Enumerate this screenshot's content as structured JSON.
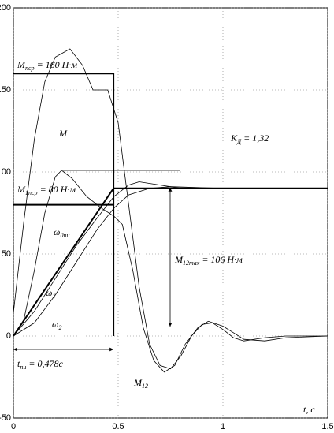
{
  "chart_data": {
    "type": "line",
    "xlim": [
      0,
      1.5
    ],
    "ylim": [
      -50,
      200
    ],
    "xticks": [
      0,
      0.5,
      1,
      1.5
    ],
    "yticks": [
      -50,
      0,
      50,
      100,
      150,
      200
    ],
    "grid": true,
    "series": [
      {
        "color": "#000",
        "line_width": 2,
        "x": [
          0,
          0.478,
          0.478
        ],
        "values": [
          160,
          160,
          0
        ]
      },
      {
        "color": "#000",
        "line_width": 2,
        "x": [
          0,
          0.478
        ],
        "values": [
          80,
          80
        ]
      },
      {
        "color": "#000",
        "line_width": 2,
        "x": [
          0,
          0.478,
          1.5
        ],
        "values": [
          0,
          90,
          90
        ]
      },
      {
        "color": "#000",
        "line_width": 0.8,
        "x": [
          0,
          0.05,
          0.1,
          0.15,
          0.2,
          0.27,
          0.33,
          0.38,
          0.45,
          0.5,
          0.55,
          0.6,
          0.65,
          0.7,
          0.75,
          0.8,
          0.85,
          0.9,
          0.95,
          1.0,
          1.05,
          1.1,
          1.2,
          1.3,
          1.5
        ],
        "values": [
          14,
          70,
          120,
          155,
          170,
          175,
          165,
          150,
          150,
          130,
          80,
          30,
          -5,
          -18,
          -20,
          -12,
          0,
          7,
          8,
          4,
          -1,
          -3,
          -1,
          0,
          0
        ]
      },
      {
        "color": "#000",
        "line_width": 0.8,
        "x": [
          0,
          0.05,
          0.1,
          0.15,
          0.2,
          0.23,
          0.28,
          0.35,
          0.42,
          0.48,
          0.52,
          0.57,
          0.62,
          0.67,
          0.72,
          0.77,
          0.82,
          0.88,
          0.93,
          1.0,
          1.05,
          1.1,
          1.2,
          1.3,
          1.5
        ],
        "values": [
          0,
          10,
          40,
          75,
          97,
          101,
          96,
          85,
          78,
          73,
          68,
          40,
          5,
          -15,
          -22,
          -18,
          -5,
          5,
          9,
          6,
          2,
          -2,
          -3,
          -1,
          0
        ]
      },
      {
        "color": "#000",
        "line_width": 0.8,
        "x": [
          0,
          0.1,
          0.2,
          0.3,
          0.4,
          0.48,
          0.55,
          0.6,
          0.7,
          0.8,
          1.0,
          1.5
        ],
        "values": [
          0,
          15,
          35,
          55,
          72,
          85,
          92,
          94,
          92,
          90,
          90,
          90
        ]
      },
      {
        "color": "#000",
        "line_width": 0.8,
        "x": [
          0,
          0.1,
          0.2,
          0.3,
          0.4,
          0.48,
          0.55,
          0.65,
          0.75,
          1.0,
          1.5
        ],
        "values": [
          0,
          8,
          25,
          45,
          65,
          78,
          86,
          90,
          91,
          90,
          90
        ]
      }
    ],
    "annotations": [
      {
        "base": "M",
        "sub": "пср",
        "tail": " = 160 Н·м"
      },
      {
        "base": "M"
      },
      {
        "base": "K",
        "sub": "Д",
        "tail": " = 1,32"
      },
      {
        "base": "M",
        "sub": "1пср",
        "tail": " = 80 Н·м"
      },
      {
        "base": "ω",
        "sub": "0пи"
      },
      {
        "base": "ω",
        "sub": "1"
      },
      {
        "base": "ω",
        "sub": "2"
      },
      {
        "base": "M",
        "sub": "12max",
        "tail": " = 106 Н·м"
      },
      {
        "base": "t",
        "sub": "пи",
        "tail": " = 0,478c"
      },
      {
        "base": "M",
        "sub": "12"
      },
      {
        "base": "t, c"
      }
    ]
  }
}
